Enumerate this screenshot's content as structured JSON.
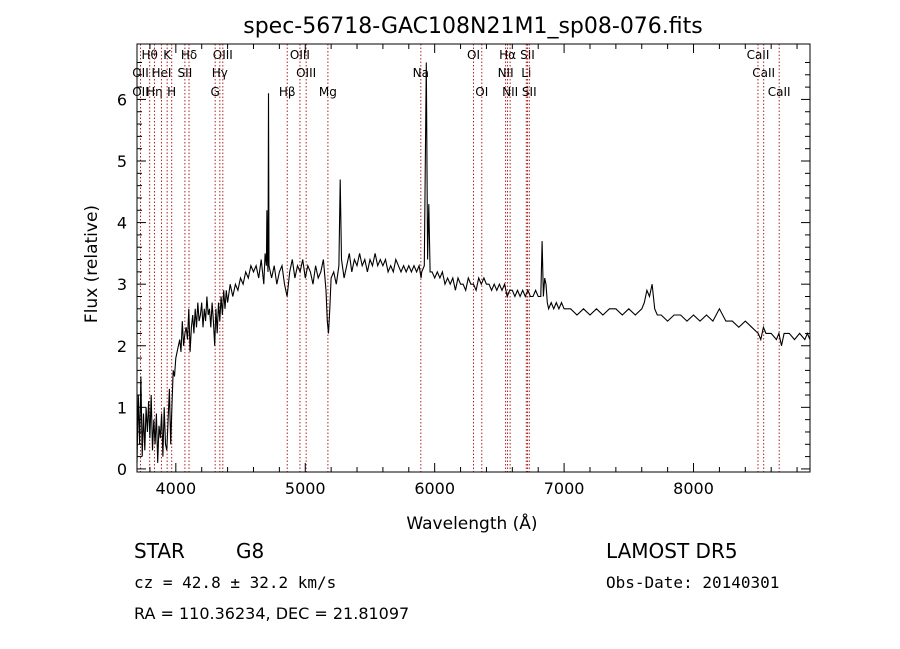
{
  "chart_data": {
    "type": "line",
    "title": "spec-56718-GAC108N21M1_sp08-076.fits",
    "xlabel": "Wavelength (Å)",
    "ylabel": "Flux (relative)",
    "xlim": [
      3700,
      8900
    ],
    "ylim": [
      -0.05,
      6.9
    ],
    "x_ticks": [
      4000,
      5000,
      6000,
      7000,
      8000
    ],
    "y_ticks": [
      0,
      1,
      2,
      3,
      4,
      5,
      6
    ],
    "grid": false,
    "series": [
      {
        "points": [
          [
            3700,
            0.1
          ],
          [
            3710,
            1.2
          ],
          [
            3720,
            0.4
          ],
          [
            3730,
            1.5
          ],
          [
            3740,
            0.2
          ],
          [
            3750,
            0.9
          ],
          [
            3760,
            0.3
          ],
          [
            3770,
            1.0
          ],
          [
            3780,
            0.6
          ],
          [
            3790,
            1.1
          ],
          [
            3800,
            0.5
          ],
          [
            3810,
            1.2
          ],
          [
            3820,
            0.3
          ],
          [
            3830,
            0.8
          ],
          [
            3840,
            0.4
          ],
          [
            3850,
            0.9
          ],
          [
            3860,
            0.1
          ],
          [
            3870,
            0.7
          ],
          [
            3880,
            0.5
          ],
          [
            3890,
            0.9
          ],
          [
            3900,
            0.2
          ],
          [
            3910,
            1.0
          ],
          [
            3920,
            0.4
          ],
          [
            3930,
            0.3
          ],
          [
            3940,
            0.8
          ],
          [
            3950,
            1.3
          ],
          [
            3960,
            0.4
          ],
          [
            3970,
            1.0
          ],
          [
            3980,
            1.6
          ],
          [
            3990,
            1.5
          ],
          [
            4000,
            1.8
          ],
          [
            4010,
            1.9
          ],
          [
            4020,
            2.0
          ],
          [
            4030,
            2.1
          ],
          [
            4040,
            1.9
          ],
          [
            4050,
            2.4
          ],
          [
            4060,
            2.0
          ],
          [
            4070,
            2.2
          ],
          [
            4080,
            2.3
          ],
          [
            4090,
            2.1
          ],
          [
            4100,
            2.6
          ],
          [
            4110,
            1.9
          ],
          [
            4120,
            2.3
          ],
          [
            4130,
            2.5
          ],
          [
            4140,
            2.2
          ],
          [
            4150,
            2.6
          ],
          [
            4160,
            2.3
          ],
          [
            4170,
            2.7
          ],
          [
            4180,
            2.4
          ],
          [
            4190,
            2.5
          ],
          [
            4200,
            2.7
          ],
          [
            4210,
            2.3
          ],
          [
            4220,
            2.6
          ],
          [
            4230,
            2.4
          ],
          [
            4240,
            2.8
          ],
          [
            4250,
            2.5
          ],
          [
            4260,
            2.6
          ],
          [
            4270,
            2.3
          ],
          [
            4280,
            2.7
          ],
          [
            4290,
            2.4
          ],
          [
            4300,
            2.0
          ],
          [
            4310,
            2.6
          ],
          [
            4320,
            2.2
          ],
          [
            4330,
            2.7
          ],
          [
            4340,
            2.4
          ],
          [
            4350,
            2.8
          ],
          [
            4360,
            2.5
          ],
          [
            4370,
            2.9
          ],
          [
            4380,
            2.6
          ],
          [
            4390,
            2.9
          ],
          [
            4400,
            2.7
          ],
          [
            4420,
            3.0
          ],
          [
            4440,
            2.8
          ],
          [
            4460,
            3.0
          ],
          [
            4480,
            2.9
          ],
          [
            4500,
            3.1
          ],
          [
            4520,
            3.0
          ],
          [
            4540,
            3.2
          ],
          [
            4560,
            3.1
          ],
          [
            4580,
            3.3
          ],
          [
            4600,
            3.2
          ],
          [
            4620,
            3.3
          ],
          [
            4640,
            3.1
          ],
          [
            4660,
            3.4
          ],
          [
            4680,
            3.0
          ],
          [
            4690,
            3.5
          ],
          [
            4700,
            3.3
          ],
          [
            4704,
            4.2
          ],
          [
            4708,
            3.4
          ],
          [
            4712,
            3.2
          ],
          [
            4716,
            6.1
          ],
          [
            4720,
            3.3
          ],
          [
            4740,
            3.1
          ],
          [
            4760,
            3.3
          ],
          [
            4780,
            3.0
          ],
          [
            4800,
            3.2
          ],
          [
            4820,
            3.3
          ],
          [
            4840,
            3.0
          ],
          [
            4860,
            2.8
          ],
          [
            4880,
            3.2
          ],
          [
            4900,
            3.4
          ],
          [
            4920,
            3.1
          ],
          [
            4940,
            3.3
          ],
          [
            4960,
            3.2
          ],
          [
            4980,
            3.4
          ],
          [
            5000,
            3.1
          ],
          [
            5020,
            3.3
          ],
          [
            5040,
            3.2
          ],
          [
            5060,
            3.0
          ],
          [
            5080,
            3.3
          ],
          [
            5100,
            3.1
          ],
          [
            5120,
            3.2
          ],
          [
            5140,
            3.4
          ],
          [
            5160,
            2.9
          ],
          [
            5170,
            2.4
          ],
          [
            5180,
            2.2
          ],
          [
            5190,
            2.6
          ],
          [
            5200,
            3.1
          ],
          [
            5220,
            3.2
          ],
          [
            5240,
            3.0
          ],
          [
            5260,
            3.3
          ],
          [
            5270,
            4.7
          ],
          [
            5280,
            3.4
          ],
          [
            5300,
            3.1
          ],
          [
            5320,
            3.3
          ],
          [
            5340,
            3.5
          ],
          [
            5360,
            3.2
          ],
          [
            5380,
            3.4
          ],
          [
            5400,
            3.3
          ],
          [
            5420,
            3.5
          ],
          [
            5440,
            3.3
          ],
          [
            5460,
            3.4
          ],
          [
            5480,
            3.2
          ],
          [
            5500,
            3.4
          ],
          [
            5520,
            3.3
          ],
          [
            5540,
            3.5
          ],
          [
            5560,
            3.3
          ],
          [
            5580,
            3.4
          ],
          [
            5600,
            3.3
          ],
          [
            5620,
            3.4
          ],
          [
            5640,
            3.2
          ],
          [
            5660,
            3.3
          ],
          [
            5680,
            3.2
          ],
          [
            5700,
            3.4
          ],
          [
            5720,
            3.3
          ],
          [
            5740,
            3.2
          ],
          [
            5760,
            3.3
          ],
          [
            5780,
            3.2
          ],
          [
            5800,
            3.3
          ],
          [
            5820,
            3.2
          ],
          [
            5840,
            3.3
          ],
          [
            5860,
            3.2
          ],
          [
            5880,
            3.3
          ],
          [
            5895,
            3.1
          ],
          [
            5900,
            3.2
          ],
          [
            5920,
            3.3
          ],
          [
            5935,
            6.6
          ],
          [
            5945,
            3.4
          ],
          [
            5955,
            4.3
          ],
          [
            5965,
            3.2
          ],
          [
            5980,
            3.2
          ],
          [
            6000,
            3.1
          ],
          [
            6020,
            3.2
          ],
          [
            6040,
            3.1
          ],
          [
            6060,
            3.2
          ],
          [
            6080,
            3.0
          ],
          [
            6100,
            3.1
          ],
          [
            6120,
            3.0
          ],
          [
            6140,
            3.1
          ],
          [
            6160,
            2.9
          ],
          [
            6180,
            3.1
          ],
          [
            6200,
            3.0
          ],
          [
            6220,
            3.0
          ],
          [
            6240,
            2.9
          ],
          [
            6260,
            3.1
          ],
          [
            6280,
            3.0
          ],
          [
            6300,
            3.0
          ],
          [
            6320,
            2.9
          ],
          [
            6340,
            3.1
          ],
          [
            6360,
            3.0
          ],
          [
            6380,
            3.1
          ],
          [
            6400,
            3.0
          ],
          [
            6420,
            3.0
          ],
          [
            6440,
            2.9
          ],
          [
            6460,
            3.0
          ],
          [
            6480,
            2.9
          ],
          [
            6500,
            3.0
          ],
          [
            6520,
            2.9
          ],
          [
            6540,
            3.0
          ],
          [
            6560,
            2.8
          ],
          [
            6580,
            2.9
          ],
          [
            6600,
            2.9
          ],
          [
            6620,
            2.8
          ],
          [
            6640,
            2.9
          ],
          [
            6660,
            2.8
          ],
          [
            6680,
            2.9
          ],
          [
            6700,
            2.8
          ],
          [
            6720,
            2.9
          ],
          [
            6740,
            2.8
          ],
          [
            6760,
            2.8
          ],
          [
            6780,
            2.9
          ],
          [
            6800,
            2.8
          ],
          [
            6820,
            2.8
          ],
          [
            6830,
            3.7
          ],
          [
            6840,
            2.8
          ],
          [
            6850,
            3.1
          ],
          [
            6860,
            3.0
          ],
          [
            6870,
            2.7
          ],
          [
            6880,
            2.6
          ],
          [
            6900,
            2.7
          ],
          [
            6920,
            2.6
          ],
          [
            6940,
            2.7
          ],
          [
            6960,
            2.6
          ],
          [
            6980,
            2.7
          ],
          [
            7000,
            2.6
          ],
          [
            7050,
            2.6
          ],
          [
            7100,
            2.5
          ],
          [
            7150,
            2.6
          ],
          [
            7200,
            2.5
          ],
          [
            7250,
            2.6
          ],
          [
            7300,
            2.5
          ],
          [
            7350,
            2.6
          ],
          [
            7400,
            2.6
          ],
          [
            7450,
            2.5
          ],
          [
            7500,
            2.6
          ],
          [
            7550,
            2.5
          ],
          [
            7600,
            2.6
          ],
          [
            7620,
            2.7
          ],
          [
            7640,
            2.9
          ],
          [
            7660,
            2.8
          ],
          [
            7680,
            3.0
          ],
          [
            7700,
            2.6
          ],
          [
            7720,
            2.5
          ],
          [
            7750,
            2.5
          ],
          [
            7800,
            2.4
          ],
          [
            7850,
            2.5
          ],
          [
            7900,
            2.5
          ],
          [
            7950,
            2.4
          ],
          [
            8000,
            2.5
          ],
          [
            8050,
            2.4
          ],
          [
            8100,
            2.5
          ],
          [
            8150,
            2.4
          ],
          [
            8200,
            2.6
          ],
          [
            8250,
            2.4
          ],
          [
            8300,
            2.4
          ],
          [
            8350,
            2.3
          ],
          [
            8400,
            2.4
          ],
          [
            8450,
            2.3
          ],
          [
            8500,
            2.2
          ],
          [
            8520,
            2.1
          ],
          [
            8540,
            2.3
          ],
          [
            8560,
            2.2
          ],
          [
            8600,
            2.2
          ],
          [
            8640,
            2.1
          ],
          [
            8660,
            2.2
          ],
          [
            8680,
            2.0
          ],
          [
            8700,
            2.2
          ],
          [
            8740,
            2.2
          ],
          [
            8780,
            2.1
          ],
          [
            8820,
            2.2
          ],
          [
            8860,
            2.1
          ],
          [
            8880,
            2.2
          ],
          [
            8900,
            2.1
          ]
        ]
      }
    ],
    "lines": [
      {
        "label": "Hθ",
        "wl": 3798,
        "row": 0
      },
      {
        "label": "OII",
        "wl": 3727,
        "row": 1
      },
      {
        "label": "OII",
        "wl": 3727,
        "row": 2
      },
      {
        "label": "Hη",
        "wl": 3835,
        "row": 2
      },
      {
        "label": "HeI",
        "wl": 3889,
        "row": 1
      },
      {
        "label": "K",
        "wl": 3933,
        "row": 0
      },
      {
        "label": "H",
        "wl": 3968,
        "row": 2
      },
      {
        "label": "Hδ",
        "wl": 4102,
        "row": 0
      },
      {
        "label": "SII",
        "wl": 4070,
        "row": 1
      },
      {
        "label": "OIII",
        "wl": 4363,
        "row": 0
      },
      {
        "label": "Hγ",
        "wl": 4340,
        "row": 1
      },
      {
        "label": "G",
        "wl": 4304,
        "row": 2
      },
      {
        "label": "Hβ",
        "wl": 4861,
        "row": 2
      },
      {
        "label": "OIII",
        "wl": 4959,
        "row": 0
      },
      {
        "label": "OIII",
        "wl": 5007,
        "row": 1
      },
      {
        "label": "Mg",
        "wl": 5175,
        "row": 2
      },
      {
        "label": "Na",
        "wl": 5893,
        "row": 1
      },
      {
        "label": "OI",
        "wl": 6300,
        "row": 0
      },
      {
        "label": "OI",
        "wl": 6364,
        "row": 2
      },
      {
        "label": "Hα",
        "wl": 6563,
        "row": 0
      },
      {
        "label": "NII",
        "wl": 6548,
        "row": 1
      },
      {
        "label": "NII",
        "wl": 6583,
        "row": 2
      },
      {
        "label": "SII",
        "wl": 6717,
        "row": 0
      },
      {
        "label": "Li",
        "wl": 6708,
        "row": 1
      },
      {
        "label": "SII",
        "wl": 6731,
        "row": 2
      },
      {
        "label": "CaII",
        "wl": 8498,
        "row": 0
      },
      {
        "label": "CaII",
        "wl": 8542,
        "row": 1
      },
      {
        "label": "CaII",
        "wl": 8662,
        "row": 2
      }
    ]
  },
  "info": {
    "class": "STAR",
    "subclass": "G8",
    "survey": "LAMOST DR5",
    "cz": "cz = 42.8 ± 32.2 km/s",
    "obs_date": "Obs-Date: 20140301",
    "radec": "RA = 110.36234, DEC =  21.81097"
  },
  "colors": {
    "spectrum": "#000000",
    "line_markers": "#b22222",
    "axes": "#000000",
    "background": "#ffffff"
  }
}
